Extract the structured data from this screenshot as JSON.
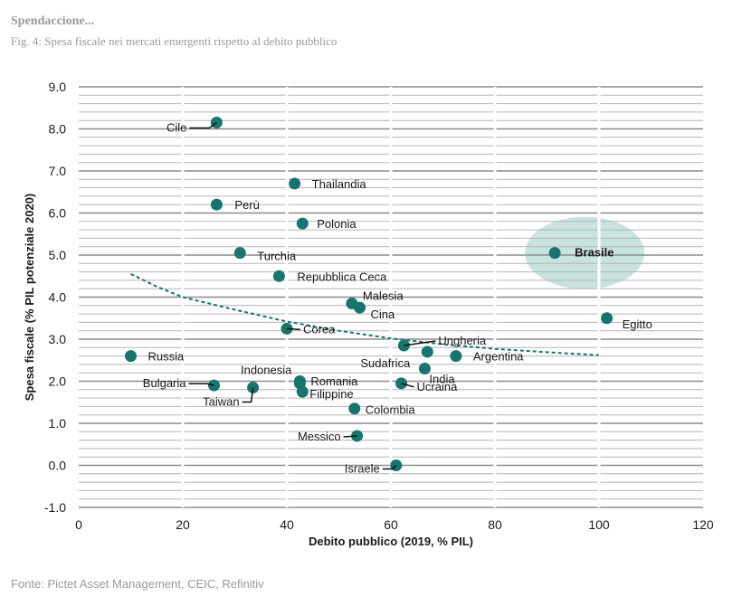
{
  "header": {
    "title": "Spendaccione...",
    "subtitle": "Fig. 4: Spesa fiscale nei mercati emergenti rispetto al debito pubblico"
  },
  "footer": {
    "source": "Fonte: Pictet Asset Management, CEIC, Refinitiv"
  },
  "colors": {
    "point": "#17746e",
    "trend": "#17746e",
    "highlight": "#c9e3e0",
    "grid": "#8c8c8c",
    "text": "#1a1a1a",
    "muted": "#9a9a9a"
  },
  "chart_data": {
    "type": "scatter",
    "xlabel": "Debito pubblico (2019, % PIL)",
    "ylabel": "Spesa fiscale (% PIL potenziale 2020)",
    "xlim": [
      0,
      120
    ],
    "ylim": [
      -1.0,
      9.0
    ],
    "xticks": [
      "0",
      "20",
      "40",
      "60",
      "80",
      "100",
      "120"
    ],
    "yticks": [
      "-1.0",
      "0.0",
      "1.0",
      "2.0",
      "3.0",
      "4.0",
      "5.0",
      "6.0",
      "7.0",
      "8.0",
      "9.0"
    ],
    "grid": true,
    "highlight": "Brasile",
    "trendline": {
      "style": "dashed",
      "points": [
        [
          10,
          4.55
        ],
        [
          15,
          4.25
        ],
        [
          20,
          4.0
        ],
        [
          30,
          3.7
        ],
        [
          40,
          3.42
        ],
        [
          50,
          3.2
        ],
        [
          60,
          3.02
        ],
        [
          70,
          2.88
        ],
        [
          80,
          2.77
        ],
        [
          90,
          2.69
        ],
        [
          100,
          2.62
        ]
      ]
    },
    "points": [
      {
        "label": "Cile",
        "x": 26.5,
        "y": 8.15
      },
      {
        "label": "Thailandia",
        "x": 41.5,
        "y": 6.7
      },
      {
        "label": "Perù",
        "x": 26.5,
        "y": 6.2
      },
      {
        "label": "Polonia",
        "x": 43,
        "y": 5.75
      },
      {
        "label": "Turchia",
        "x": 31,
        "y": 5.05
      },
      {
        "label": "Brasile",
        "x": 91.5,
        "y": 5.05
      },
      {
        "label": "Repubblica Ceca",
        "x": 38.5,
        "y": 4.5
      },
      {
        "label": "Malesia",
        "x": 52.5,
        "y": 3.85
      },
      {
        "label": "Cina",
        "x": 54,
        "y": 3.75
      },
      {
        "label": "Egitto",
        "x": 101.5,
        "y": 3.5
      },
      {
        "label": "Corea",
        "x": 40,
        "y": 3.25
      },
      {
        "label": "Ungheria",
        "x": 62.5,
        "y": 2.85
      },
      {
        "label": "Sudafrica",
        "x": 67,
        "y": 2.7
      },
      {
        "label": "Argentina",
        "x": 72.5,
        "y": 2.6
      },
      {
        "label": "Russia",
        "x": 10,
        "y": 2.6
      },
      {
        "label": "India",
        "x": 66.5,
        "y": 2.3
      },
      {
        "label": "Indonesia",
        "x": 42.5,
        "y": 2.0
      },
      {
        "label": "Romania",
        "x": 42.5,
        "y": 1.95
      },
      {
        "label": "Ucraina",
        "x": 62,
        "y": 1.95
      },
      {
        "label": "Bulgaria",
        "x": 26,
        "y": 1.9
      },
      {
        "label": "Taiwan",
        "x": 33.5,
        "y": 1.85
      },
      {
        "label": "Filippine",
        "x": 43,
        "y": 1.75
      },
      {
        "label": "Colombia",
        "x": 53,
        "y": 1.35
      },
      {
        "label": "Messico",
        "x": 53.5,
        "y": 0.7
      },
      {
        "label": "Israele",
        "x": 61,
        "y": 0.0
      }
    ]
  }
}
